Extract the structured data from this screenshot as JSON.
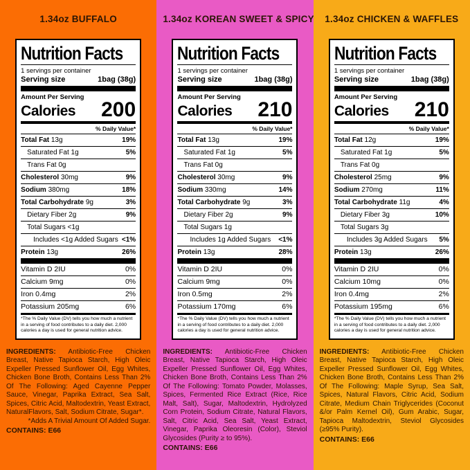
{
  "panels": [
    {
      "title": "1.34oz BUFFALO",
      "bg": "#fb6d04",
      "label": {
        "title": "Nutrition Facts",
        "servings_line": "1 servings per container",
        "serving_size_label": "Serving size",
        "serving_size_value": "1bag (38g)",
        "amount_per_serving": "Amount Per Serving",
        "calories_label": "Calories",
        "calories_value": "200",
        "daily_value_header": "% Daily Value*",
        "rows": [
          {
            "name": "Total Fat",
            "amount": "13g",
            "dv": "19%",
            "bold": true,
            "indent": 0
          },
          {
            "name": "Saturated Fat",
            "amount": "1g",
            "dv": "5%",
            "bold": false,
            "indent": 1
          },
          {
            "name": "Trans Fat",
            "amount": "0g",
            "dv": "",
            "bold": false,
            "indent": 1
          },
          {
            "name": "Cholesterol",
            "amount": "30mg",
            "dv": "9%",
            "bold": true,
            "indent": 0
          },
          {
            "name": "Sodium",
            "amount": "380mg",
            "dv": "18%",
            "bold": true,
            "indent": 0
          },
          {
            "name": "Total Carbohydrate",
            "amount": "9g",
            "dv": "3%",
            "bold": true,
            "indent": 0
          },
          {
            "name": "Dietary Fiber",
            "amount": "2g",
            "dv": "9%",
            "bold": false,
            "indent": 1
          },
          {
            "name": "Total Sugars",
            "amount": "<1g",
            "dv": "",
            "bold": false,
            "indent": 1
          },
          {
            "name": "Includes <1g Added Sugars",
            "amount": "",
            "dv": "<1%",
            "bold": false,
            "indent": 2
          },
          {
            "name": "Protein",
            "amount": "13g",
            "dv": "26%",
            "bold": true,
            "indent": 0
          }
        ],
        "vitamins": [
          {
            "name": "Vitamin D 2IU",
            "dv": "0%"
          },
          {
            "name": "Calcium 9mg",
            "dv": "0%"
          },
          {
            "name": "Iron 0.4mg",
            "dv": "2%"
          },
          {
            "name": "Potassium 205mg",
            "dv": "6%"
          }
        ],
        "footnote": "*The % Daily Value (DV) tells you how much a nutrient in a serving of food contributes to a daily diet. 2,000 calories a day is used for general nutrition advice."
      },
      "ingredients_label": "INGREDIENTS:",
      "ingredients": "Antibiotic-Free Chicken Breast, Native Tapioca Starch, High Oleic Expeller Pressed Sunflower Oil, Egg Whites, Chicken Bone Broth, Contains Less Than 2% Of The Following: Aged Cayenne Pepper Sauce, Vinegar, Paprika Extract, Sea Salt, Spices, Citric Acid, Maltodextrin, Yeast Extract, NaturalFlavors, Salt, Sodium Citrate, Sugar*.",
      "ingredients_note": "*Adds A Trivial Amount Of Added Sugar.",
      "contains": "CONTAINS: E66"
    },
    {
      "title": "1.34oz KOREAN SWEET & SPICY",
      "bg": "#e95ac5",
      "label": {
        "title": "Nutrition Facts",
        "servings_line": "1 servings per container",
        "serving_size_label": "Serving size",
        "serving_size_value": "1bag (38g)",
        "amount_per_serving": "Amount Per Serving",
        "calories_label": "Calories",
        "calories_value": "210",
        "daily_value_header": "% Daily Value*",
        "rows": [
          {
            "name": "Total Fat",
            "amount": "13g",
            "dv": "19%",
            "bold": true,
            "indent": 0
          },
          {
            "name": "Saturated Fat",
            "amount": "1g",
            "dv": "5%",
            "bold": false,
            "indent": 1
          },
          {
            "name": "Trans Fat",
            "amount": "0g",
            "dv": "",
            "bold": false,
            "indent": 1
          },
          {
            "name": "Cholesterol",
            "amount": "30mg",
            "dv": "9%",
            "bold": true,
            "indent": 0
          },
          {
            "name": "Sodium",
            "amount": "330mg",
            "dv": "14%",
            "bold": true,
            "indent": 0
          },
          {
            "name": "Total Carbohydrate",
            "amount": "9g",
            "dv": "3%",
            "bold": true,
            "indent": 0
          },
          {
            "name": "Dietary Fiber",
            "amount": "2g",
            "dv": "9%",
            "bold": false,
            "indent": 1
          },
          {
            "name": "Total Sugars",
            "amount": "1g",
            "dv": "",
            "bold": false,
            "indent": 1
          },
          {
            "name": "Includes 1g Added Sugars",
            "amount": "",
            "dv": "<1%",
            "bold": false,
            "indent": 2
          },
          {
            "name": "Protein",
            "amount": "13g",
            "dv": "28%",
            "bold": true,
            "indent": 0
          }
        ],
        "vitamins": [
          {
            "name": "Vitamin D 2IU",
            "dv": "0%"
          },
          {
            "name": "Calcium 9mg",
            "dv": "0%"
          },
          {
            "name": "Iron 0.5mg",
            "dv": "2%"
          },
          {
            "name": "Potassium 170mg",
            "dv": "6%"
          }
        ],
        "footnote": "*The % Daily Value (DV) tells you how much a nutrient in a serving of food contributes to a daily diet. 2,000 calories a day is used for general nutrition advice."
      },
      "ingredients_label": "INGREDIENTS:",
      "ingredients": "Antibiotic-Free Chicken Breast, Native Tapioca Starch, High Oleic Expeller Pressed Sunflower Oil, Egg Whites, Chicken Bone Broth, Contains Less Than 2% Of The Following: Tomato Powder, Molasses, Spices, Fermented Rice Extract (Rice, Rice Malt, Salt), Sugar, Maltodextrin, Hydrolyzed Corn Protein, Sodium Citrate, Natural Flavors, Salt, Citric Acid, Sea Salt, Yeast Extract, Vinegar, Paprika Oleoresin (Color), Steviol Glycosides (Purity ≥ to 95%).",
      "ingredients_note": "",
      "contains": "CONTAINS: E66"
    },
    {
      "title": "1.34oz CHICKEN & WAFFLES",
      "bg": "#f8aa18",
      "label": {
        "title": "Nutrition Facts",
        "servings_line": "1 servings per container",
        "serving_size_label": "Serving size",
        "serving_size_value": "1bag (38g)",
        "amount_per_serving": "Amount Per Serving",
        "calories_label": "Calories",
        "calories_value": "210",
        "daily_value_header": "% Daily Value*",
        "rows": [
          {
            "name": "Total Fat",
            "amount": "12g",
            "dv": "19%",
            "bold": true,
            "indent": 0
          },
          {
            "name": "Saturated Fat",
            "amount": "1g",
            "dv": "5%",
            "bold": false,
            "indent": 1
          },
          {
            "name": "Trans Fat",
            "amount": "0g",
            "dv": "",
            "bold": false,
            "indent": 1
          },
          {
            "name": "Cholesterol",
            "amount": "25mg",
            "dv": "9%",
            "bold": true,
            "indent": 0
          },
          {
            "name": "Sodium",
            "amount": "270mg",
            "dv": "11%",
            "bold": true,
            "indent": 0
          },
          {
            "name": "Total Carbohydrate",
            "amount": "11g",
            "dv": "4%",
            "bold": true,
            "indent": 0
          },
          {
            "name": "Dietary Fiber",
            "amount": "3g",
            "dv": "10%",
            "bold": false,
            "indent": 1
          },
          {
            "name": "Total Sugars",
            "amount": "3g",
            "dv": "",
            "bold": false,
            "indent": 1
          },
          {
            "name": "Includes 3g Added Sugars",
            "amount": "",
            "dv": "5%",
            "bold": false,
            "indent": 2
          },
          {
            "name": "Protein",
            "amount": "13g",
            "dv": "26%",
            "bold": true,
            "indent": 0
          }
        ],
        "vitamins": [
          {
            "name": "Vitamin D 2IU",
            "dv": "0%"
          },
          {
            "name": "Calcium 10mg",
            "dv": "0%"
          },
          {
            "name": "Iron 0.4mg",
            "dv": "2%"
          },
          {
            "name": "Potassium 195mg",
            "dv": "6%"
          }
        ],
        "footnote": "*The % Daily Value (DV) tells you how much a nutrient in a serving of food contributes to a daily diet. 2,000 calories a day is used for general nutrition advice."
      },
      "ingredients_label": "INGREDIENTS:",
      "ingredients": "Antibiotic-Free Chicken Breast, Native Tapioca Starch, High Oleic Expeller Pressed Sunflower Oil, Egg Whites, Chicken Bone Broth, Contains Less Than 2% Of The Following: Maple Syrup, Sea Salt, Spices, Natural Flavors, Citric Acid, Sodium Citrate, Medium Chain Triglycerides (Coconut &/or Palm Kernel Oil), Gum Arabic, Sugar, Tapioca Maltodextrin, Steviol Glycosides (≥95% Purity).",
      "ingredients_note": "",
      "contains": "CONTAINS: E66"
    }
  ]
}
